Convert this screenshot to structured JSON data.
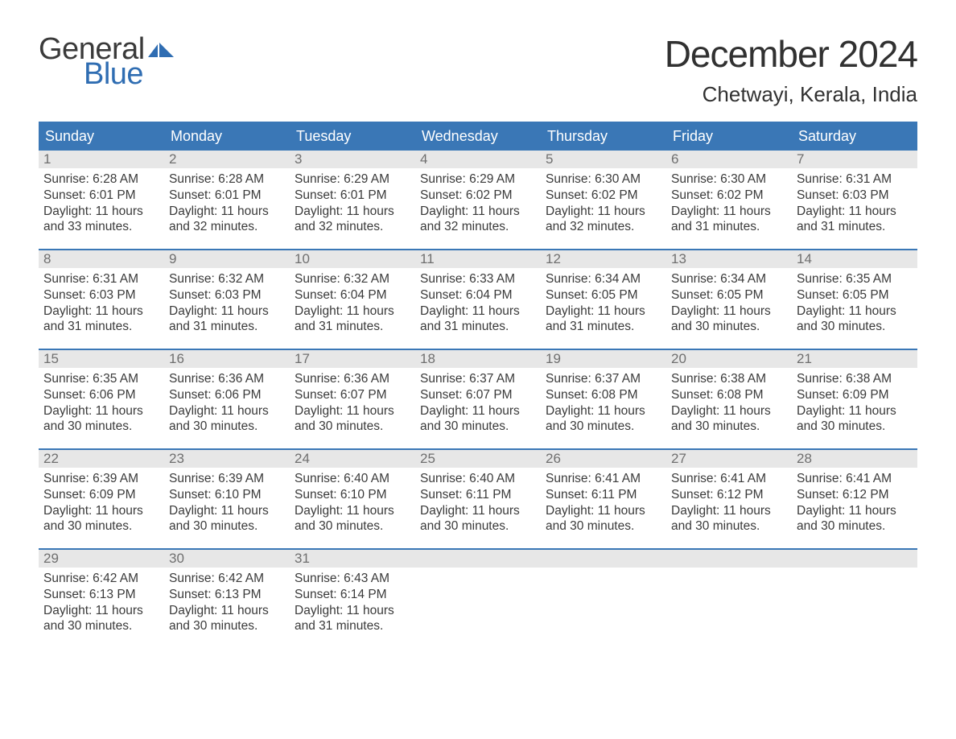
{
  "logo": {
    "line1": "General",
    "line2": "Blue",
    "flag_color": "#2f6db2"
  },
  "title": "December 2024",
  "location": "Chetwayi, Kerala, India",
  "colors": {
    "header_blue": "#3a77b6",
    "daynum_bg": "#e7e7e7",
    "text": "#3a3a3a",
    "daynum_text": "#6f6f6f"
  },
  "days_of_week": [
    "Sunday",
    "Monday",
    "Tuesday",
    "Wednesday",
    "Thursday",
    "Friday",
    "Saturday"
  ],
  "weeks": [
    [
      {
        "n": "1",
        "sunrise": "Sunrise: 6:28 AM",
        "sunset": "Sunset: 6:01 PM",
        "daylight": "Daylight: 11 hours and 33 minutes."
      },
      {
        "n": "2",
        "sunrise": "Sunrise: 6:28 AM",
        "sunset": "Sunset: 6:01 PM",
        "daylight": "Daylight: 11 hours and 32 minutes."
      },
      {
        "n": "3",
        "sunrise": "Sunrise: 6:29 AM",
        "sunset": "Sunset: 6:01 PM",
        "daylight": "Daylight: 11 hours and 32 minutes."
      },
      {
        "n": "4",
        "sunrise": "Sunrise: 6:29 AM",
        "sunset": "Sunset: 6:02 PM",
        "daylight": "Daylight: 11 hours and 32 minutes."
      },
      {
        "n": "5",
        "sunrise": "Sunrise: 6:30 AM",
        "sunset": "Sunset: 6:02 PM",
        "daylight": "Daylight: 11 hours and 32 minutes."
      },
      {
        "n": "6",
        "sunrise": "Sunrise: 6:30 AM",
        "sunset": "Sunset: 6:02 PM",
        "daylight": "Daylight: 11 hours and 31 minutes."
      },
      {
        "n": "7",
        "sunrise": "Sunrise: 6:31 AM",
        "sunset": "Sunset: 6:03 PM",
        "daylight": "Daylight: 11 hours and 31 minutes."
      }
    ],
    [
      {
        "n": "8",
        "sunrise": "Sunrise: 6:31 AM",
        "sunset": "Sunset: 6:03 PM",
        "daylight": "Daylight: 11 hours and 31 minutes."
      },
      {
        "n": "9",
        "sunrise": "Sunrise: 6:32 AM",
        "sunset": "Sunset: 6:03 PM",
        "daylight": "Daylight: 11 hours and 31 minutes."
      },
      {
        "n": "10",
        "sunrise": "Sunrise: 6:32 AM",
        "sunset": "Sunset: 6:04 PM",
        "daylight": "Daylight: 11 hours and 31 minutes."
      },
      {
        "n": "11",
        "sunrise": "Sunrise: 6:33 AM",
        "sunset": "Sunset: 6:04 PM",
        "daylight": "Daylight: 11 hours and 31 minutes."
      },
      {
        "n": "12",
        "sunrise": "Sunrise: 6:34 AM",
        "sunset": "Sunset: 6:05 PM",
        "daylight": "Daylight: 11 hours and 31 minutes."
      },
      {
        "n": "13",
        "sunrise": "Sunrise: 6:34 AM",
        "sunset": "Sunset: 6:05 PM",
        "daylight": "Daylight: 11 hours and 30 minutes."
      },
      {
        "n": "14",
        "sunrise": "Sunrise: 6:35 AM",
        "sunset": "Sunset: 6:05 PM",
        "daylight": "Daylight: 11 hours and 30 minutes."
      }
    ],
    [
      {
        "n": "15",
        "sunrise": "Sunrise: 6:35 AM",
        "sunset": "Sunset: 6:06 PM",
        "daylight": "Daylight: 11 hours and 30 minutes."
      },
      {
        "n": "16",
        "sunrise": "Sunrise: 6:36 AM",
        "sunset": "Sunset: 6:06 PM",
        "daylight": "Daylight: 11 hours and 30 minutes."
      },
      {
        "n": "17",
        "sunrise": "Sunrise: 6:36 AM",
        "sunset": "Sunset: 6:07 PM",
        "daylight": "Daylight: 11 hours and 30 minutes."
      },
      {
        "n": "18",
        "sunrise": "Sunrise: 6:37 AM",
        "sunset": "Sunset: 6:07 PM",
        "daylight": "Daylight: 11 hours and 30 minutes."
      },
      {
        "n": "19",
        "sunrise": "Sunrise: 6:37 AM",
        "sunset": "Sunset: 6:08 PM",
        "daylight": "Daylight: 11 hours and 30 minutes."
      },
      {
        "n": "20",
        "sunrise": "Sunrise: 6:38 AM",
        "sunset": "Sunset: 6:08 PM",
        "daylight": "Daylight: 11 hours and 30 minutes."
      },
      {
        "n": "21",
        "sunrise": "Sunrise: 6:38 AM",
        "sunset": "Sunset: 6:09 PM",
        "daylight": "Daylight: 11 hours and 30 minutes."
      }
    ],
    [
      {
        "n": "22",
        "sunrise": "Sunrise: 6:39 AM",
        "sunset": "Sunset: 6:09 PM",
        "daylight": "Daylight: 11 hours and 30 minutes."
      },
      {
        "n": "23",
        "sunrise": "Sunrise: 6:39 AM",
        "sunset": "Sunset: 6:10 PM",
        "daylight": "Daylight: 11 hours and 30 minutes."
      },
      {
        "n": "24",
        "sunrise": "Sunrise: 6:40 AM",
        "sunset": "Sunset: 6:10 PM",
        "daylight": "Daylight: 11 hours and 30 minutes."
      },
      {
        "n": "25",
        "sunrise": "Sunrise: 6:40 AM",
        "sunset": "Sunset: 6:11 PM",
        "daylight": "Daylight: 11 hours and 30 minutes."
      },
      {
        "n": "26",
        "sunrise": "Sunrise: 6:41 AM",
        "sunset": "Sunset: 6:11 PM",
        "daylight": "Daylight: 11 hours and 30 minutes."
      },
      {
        "n": "27",
        "sunrise": "Sunrise: 6:41 AM",
        "sunset": "Sunset: 6:12 PM",
        "daylight": "Daylight: 11 hours and 30 minutes."
      },
      {
        "n": "28",
        "sunrise": "Sunrise: 6:41 AM",
        "sunset": "Sunset: 6:12 PM",
        "daylight": "Daylight: 11 hours and 30 minutes."
      }
    ],
    [
      {
        "n": "29",
        "sunrise": "Sunrise: 6:42 AM",
        "sunset": "Sunset: 6:13 PM",
        "daylight": "Daylight: 11 hours and 30 minutes."
      },
      {
        "n": "30",
        "sunrise": "Sunrise: 6:42 AM",
        "sunset": "Sunset: 6:13 PM",
        "daylight": "Daylight: 11 hours and 30 minutes."
      },
      {
        "n": "31",
        "sunrise": "Sunrise: 6:43 AM",
        "sunset": "Sunset: 6:14 PM",
        "daylight": "Daylight: 11 hours and 31 minutes."
      },
      {
        "empty": true
      },
      {
        "empty": true
      },
      {
        "empty": true
      },
      {
        "empty": true
      }
    ]
  ]
}
